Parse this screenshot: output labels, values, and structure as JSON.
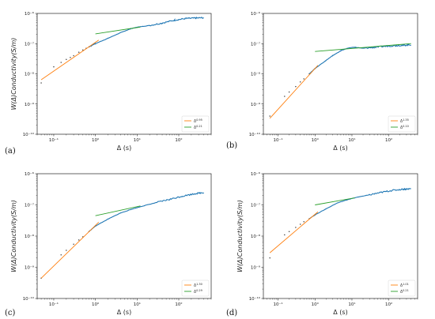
{
  "chart_data": [
    {
      "panel": "(a)",
      "type": "scatter",
      "xlabel": "Δ (s)",
      "ylabel": "W(Δ)Conductivity(S/m)",
      "xscale": "log",
      "yscale": "log",
      "xlim": [
        0.04,
        600
      ],
      "ylim": [
        1e-10,
        1e-06
      ],
      "xticks": [
        {
          "v": 0.1,
          "label": "10⁻¹"
        },
        {
          "v": 1,
          "label": "10⁰"
        },
        {
          "v": 10,
          "label": "10¹"
        },
        {
          "v": 100,
          "label": "10²"
        }
      ],
      "yticks": [
        {
          "v": 1e-10,
          "label": "10⁻¹⁰"
        },
        {
          "v": 1e-09,
          "label": "10⁻⁹"
        },
        {
          "v": 1e-08,
          "label": "10⁻⁸"
        },
        {
          "v": 1e-07,
          "label": "10⁻⁷"
        },
        {
          "v": 1e-06,
          "label": "10⁻⁶"
        }
      ],
      "data_points": [
        [
          0.05,
          5e-09
        ],
        [
          0.1,
          1.7e-08
        ],
        [
          0.15,
          2.4e-08
        ],
        [
          0.2,
          3e-08
        ],
        [
          0.25,
          3.5e-08
        ],
        [
          0.3,
          4e-08
        ],
        [
          0.4,
          5.2e-08
        ],
        [
          0.5,
          6.2e-08
        ],
        [
          0.6,
          7e-08
        ],
        [
          0.7,
          7.8e-08
        ],
        [
          0.8,
          8.6e-08
        ],
        [
          0.9,
          9.5e-08
        ],
        [
          1.0,
          1e-07
        ],
        [
          2,
          1.5e-07
        ],
        [
          4,
          2.3e-07
        ],
        [
          7,
          3.1e-07
        ],
        [
          10,
          3.5e-07
        ],
        [
          20,
          4e-07
        ],
        [
          40,
          4.8e-07
        ],
        [
          80,
          6e-07
        ],
        [
          150,
          6.8e-07
        ],
        [
          250,
          7e-07
        ],
        [
          400,
          7.2e-07
        ]
      ],
      "fits": [
        {
          "name": "Δ^0.95",
          "color": "#ff7f0e",
          "exponent": 0.95,
          "x_range": [
            0.05,
            1.2
          ],
          "y_at_x1": 1.1e-07
        },
        {
          "name": "Δ^0.21",
          "color": "#2ca02c",
          "exponent": 0.21,
          "x_range": [
            1.0,
            12
          ],
          "y_at_x1": 2.1e-07
        }
      ],
      "legend": "bottom-right"
    },
    {
      "panel": "(b)",
      "type": "scatter",
      "xlabel": "Δ (s)",
      "ylabel": "",
      "xscale": "log",
      "yscale": "log",
      "xlim": [
        0.04,
        600
      ],
      "ylim": [
        1e-10,
        1e-06
      ],
      "xticks": [
        {
          "v": 0.1,
          "label": "10⁻¹"
        },
        {
          "v": 1,
          "label": "10⁰"
        },
        {
          "v": 10,
          "label": "10¹"
        },
        {
          "v": 100,
          "label": "10²"
        }
      ],
      "yticks": [
        {
          "v": 1e-10,
          "label": "10⁻¹⁰"
        },
        {
          "v": 1e-09,
          "label": "10⁻⁹"
        },
        {
          "v": 1e-08,
          "label": "10⁻⁸"
        },
        {
          "v": 1e-07,
          "label": "10⁻⁷"
        },
        {
          "v": 1e-06,
          "label": "10⁻⁶"
        }
      ],
      "data_points": [
        [
          0.06,
          4e-10
        ],
        [
          0.15,
          1.8e-09
        ],
        [
          0.2,
          2.5e-09
        ],
        [
          0.3,
          3.8e-09
        ],
        [
          0.4,
          5.4e-09
        ],
        [
          0.5,
          6.8e-09
        ],
        [
          0.7,
          1e-08
        ],
        [
          1.0,
          1.5e-08
        ],
        [
          2,
          2.8e-08
        ],
        [
          3,
          4e-08
        ],
        [
          5,
          5.8e-08
        ],
        [
          8,
          7.2e-08
        ],
        [
          12,
          7.6e-08
        ],
        [
          20,
          7e-08
        ],
        [
          40,
          7.5e-08
        ],
        [
          80,
          8.2e-08
        ],
        [
          150,
          8.6e-08
        ],
        [
          250,
          8.8e-08
        ],
        [
          400,
          9.2e-08
        ]
      ],
      "fits": [
        {
          "name": "Δ^1.35",
          "color": "#ff7f0e",
          "exponent": 1.35,
          "x_range": [
            0.06,
            1.2
          ],
          "y_at_x1": 1.5e-08
        },
        {
          "name": "Δ^0.10",
          "color": "#2ca02c",
          "exponent": 0.1,
          "x_range": [
            1.0,
            400
          ],
          "y_at_x1": 5.5e-08
        }
      ],
      "legend": "bottom-right"
    },
    {
      "panel": "(c)",
      "type": "scatter",
      "xlabel": "Δ (s)",
      "ylabel": "W(Δ)Conductivity(S/m)",
      "xscale": "log",
      "yscale": "log",
      "xlim": [
        0.04,
        600
      ],
      "ylim": [
        1e-10,
        1e-06
      ],
      "xticks": [
        {
          "v": 0.1,
          "label": "10⁻¹"
        },
        {
          "v": 1,
          "label": "10⁰"
        },
        {
          "v": 10,
          "label": "10¹"
        },
        {
          "v": 100,
          "label": "10²"
        }
      ],
      "yticks": [
        {
          "v": 1e-10,
          "label": "10⁻¹⁰"
        },
        {
          "v": 1e-09,
          "label": "10⁻⁹"
        },
        {
          "v": 1e-08,
          "label": "10⁻⁸"
        },
        {
          "v": 1e-07,
          "label": "10⁻⁷"
        },
        {
          "v": 1e-06,
          "label": "10⁻⁶"
        }
      ],
      "data_points": [
        [
          0.05,
          4.5e-10
        ],
        [
          0.15,
          2.5e-09
        ],
        [
          0.2,
          3.5e-09
        ],
        [
          0.3,
          5.5e-09
        ],
        [
          0.4,
          7.5e-09
        ],
        [
          0.5,
          9.5e-09
        ],
        [
          0.7,
          1.4e-08
        ],
        [
          1.0,
          2.1e-08
        ],
        [
          2,
          3.5e-08
        ],
        [
          4,
          5.5e-08
        ],
        [
          8,
          7.5e-08
        ],
        [
          15,
          9.5e-08
        ],
        [
          30,
          1.2e-07
        ],
        [
          60,
          1.5e-07
        ],
        [
          120,
          1.9e-07
        ],
        [
          250,
          2.3e-07
        ],
        [
          400,
          2.5e-07
        ]
      ],
      "fits": [
        {
          "name": "Δ^1.30",
          "color": "#ff7f0e",
          "exponent": 1.3,
          "x_range": [
            0.05,
            1.2
          ],
          "y_at_x1": 2.2e-08
        },
        {
          "name": "Δ^0.29",
          "color": "#2ca02c",
          "exponent": 0.29,
          "x_range": [
            1.0,
            12
          ],
          "y_at_x1": 4.5e-08
        }
      ],
      "legend": "bottom-right"
    },
    {
      "panel": "(d)",
      "type": "scatter",
      "xlabel": "Δ (s)",
      "ylabel": "W(Δ)Conductivity(S/m)",
      "xscale": "log",
      "yscale": "log",
      "xlim": [
        0.04,
        600
      ],
      "ylim": [
        1e-10,
        1e-06
      ],
      "xticks": [
        {
          "v": 0.1,
          "label": "10⁻¹"
        },
        {
          "v": 1,
          "label": "10⁰"
        },
        {
          "v": 10,
          "label": "10¹"
        },
        {
          "v": 100,
          "label": "10²"
        }
      ],
      "yticks": [
        {
          "v": 1e-10,
          "label": "10⁻¹⁰"
        },
        {
          "v": 1e-09,
          "label": "10⁻⁹"
        },
        {
          "v": 1e-08,
          "label": "10⁻⁸"
        },
        {
          "v": 1e-07,
          "label": "10⁻⁷"
        },
        {
          "v": 1e-06,
          "label": "10⁻⁶"
        }
      ],
      "data_points": [
        [
          0.06,
          2e-09
        ],
        [
          0.15,
          1.1e-08
        ],
        [
          0.2,
          1.4e-08
        ],
        [
          0.3,
          1.9e-08
        ],
        [
          0.4,
          2.4e-08
        ],
        [
          0.5,
          2.9e-08
        ],
        [
          0.7,
          3.6e-08
        ],
        [
          1.0,
          4.8e-08
        ],
        [
          2,
          7.5e-08
        ],
        [
          4,
          1.15e-07
        ],
        [
          8,
          1.5e-07
        ],
        [
          15,
          1.8e-07
        ],
        [
          30,
          2.1e-07
        ],
        [
          60,
          2.5e-07
        ],
        [
          120,
          2.9e-07
        ],
        [
          250,
          3.2e-07
        ],
        [
          400,
          3.3e-07
        ]
      ],
      "fits": [
        {
          "name": "Δ^1.01",
          "color": "#ff7f0e",
          "exponent": 1.01,
          "x_range": [
            0.06,
            1.2
          ],
          "y_at_x1": 5e-08
        },
        {
          "name": "Δ^0.21",
          "color": "#2ca02c",
          "exponent": 0.21,
          "x_range": [
            1.0,
            12
          ],
          "y_at_x1": 1e-07
        }
      ],
      "legend": "bottom-right"
    }
  ],
  "colors": {
    "data_line": "#1f77b4",
    "data_points": "#444444",
    "axes": "#000000"
  }
}
